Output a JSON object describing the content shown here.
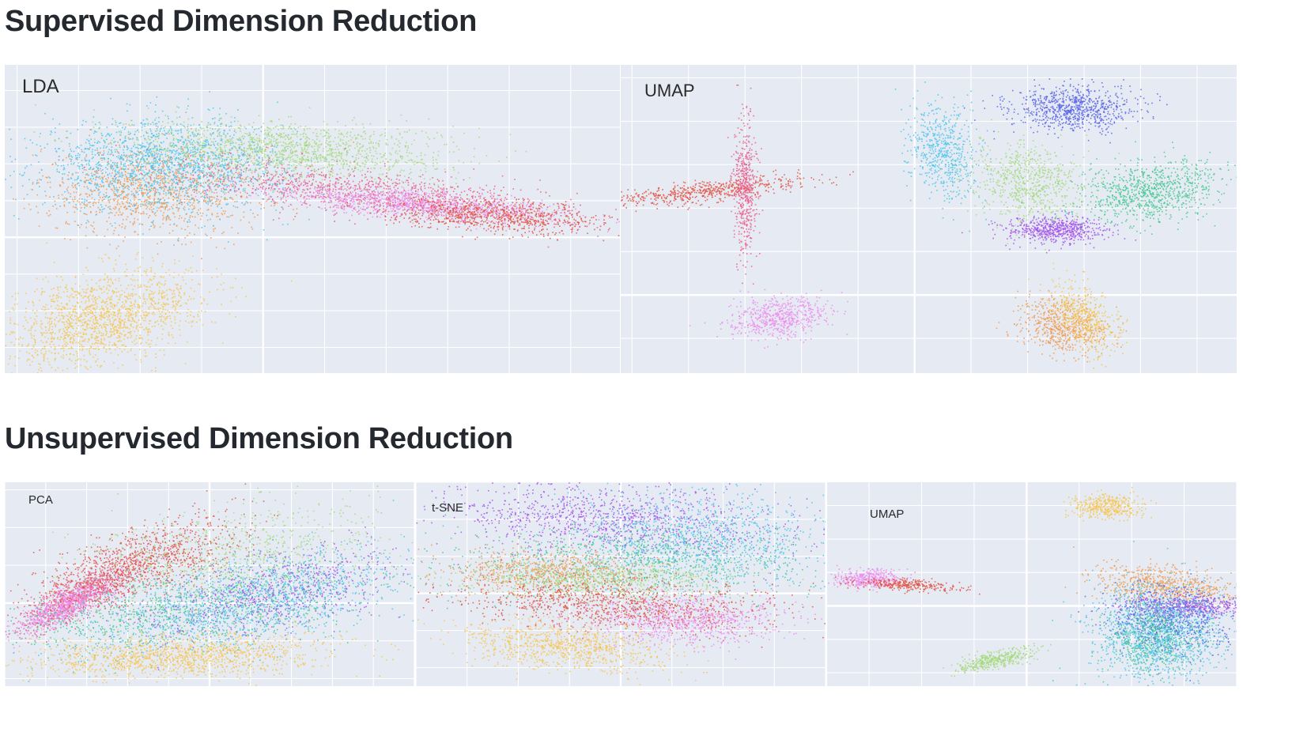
{
  "sections": {
    "supervised_title": "Supervised Dimension Reduction",
    "unsupervised_title": "Unsupervised Dimension Reduction"
  },
  "palette": {
    "red": "#e45444",
    "pink": "#ea5f8d",
    "violet": "#ef8ded",
    "blue": "#5b64e8",
    "cyan": "#4cc6eb",
    "green": "#45c98f",
    "lime": "#a6d97a",
    "purple": "#a653ec",
    "orange": "#f09a50",
    "yellow": "#f7c552"
  },
  "chart_data": [
    {
      "id": "lda",
      "label": "LDA",
      "type": "scatter",
      "clusters": [
        {
          "color": "yellow",
          "cx": -2.6,
          "cy": -2.2,
          "sx": 0.55,
          "sy": 0.9,
          "rot": -55,
          "n": 1600
        },
        {
          "color": "orange",
          "cx": -1.8,
          "cy": 1.3,
          "sx": 0.9,
          "sy": 0.6,
          "rot": 0,
          "n": 1200
        },
        {
          "color": "cyan",
          "cx": -1.6,
          "cy": 2.0,
          "sx": 1.0,
          "sy": 0.6,
          "rot": 0,
          "n": 1800
        },
        {
          "color": "lime",
          "cx": 0.4,
          "cy": 2.4,
          "sx": 1.3,
          "sy": 0.4,
          "rot": -5,
          "n": 1400
        },
        {
          "color": "pink",
          "cx": 1.8,
          "cy": 1.2,
          "sx": 1.6,
          "sy": 0.3,
          "rot": -10,
          "n": 1200
        },
        {
          "color": "violet",
          "cx": 2.6,
          "cy": 0.9,
          "sx": 1.2,
          "sy": 0.18,
          "rot": -8,
          "n": 1000
        },
        {
          "color": "red",
          "cx": 3.8,
          "cy": 0.6,
          "sx": 0.9,
          "sy": 0.22,
          "rot": -6,
          "n": 800
        }
      ],
      "xlim": [
        -4.2,
        5.8
      ],
      "ylim": [
        -3.7,
        4.7
      ]
    },
    {
      "id": "umap_supervised",
      "label": "UMAP",
      "type": "scatter",
      "clusters": [
        {
          "color": "red",
          "cx": -3.7,
          "cy": 2.4,
          "sx": 0.9,
          "sy": 0.12,
          "rot": 8,
          "n": 600
        },
        {
          "color": "pink",
          "cx": -3.0,
          "cy": 2.5,
          "sx": 0.1,
          "sy": 0.8,
          "rot": 0,
          "n": 500
        },
        {
          "color": "cyan",
          "cx": 0.5,
          "cy": 3.3,
          "sx": 0.3,
          "sy": 0.55,
          "rot": 10,
          "n": 600
        },
        {
          "color": "blue",
          "cx": 2.8,
          "cy": 4.3,
          "sx": 0.55,
          "sy": 0.25,
          "rot": 0,
          "n": 800
        },
        {
          "color": "lime",
          "cx": 2.0,
          "cy": 2.6,
          "sx": 0.5,
          "sy": 0.45,
          "rot": -30,
          "n": 700
        },
        {
          "color": "purple",
          "cx": 2.5,
          "cy": 1.5,
          "sx": 0.45,
          "sy": 0.15,
          "rot": 0,
          "n": 600
        },
        {
          "color": "green",
          "cx": 4.2,
          "cy": 2.4,
          "sx": 0.65,
          "sy": 0.35,
          "rot": 15,
          "n": 900
        },
        {
          "color": "violet",
          "cx": -2.4,
          "cy": -0.5,
          "sx": 0.45,
          "sy": 0.22,
          "rot": 10,
          "n": 600
        },
        {
          "color": "orange",
          "cx": 2.6,
          "cy": -0.7,
          "sx": 0.4,
          "sy": 0.3,
          "rot": -20,
          "n": 600
        },
        {
          "color": "yellow",
          "cx": 3.0,
          "cy": -0.5,
          "sx": 0.25,
          "sy": 0.45,
          "rot": 30,
          "n": 500
        }
      ],
      "xlim": [
        -5.2,
        5.7
      ],
      "ylim": [
        -1.8,
        5.3
      ]
    },
    {
      "id": "pca",
      "label": "PCA",
      "type": "scatter",
      "clusters": [
        {
          "color": "pink",
          "cx": -3.2,
          "cy": 0.2,
          "sx": 0.9,
          "sy": 0.22,
          "rot": 30,
          "n": 900
        },
        {
          "color": "violet",
          "cx": -3.6,
          "cy": -0.1,
          "sx": 0.6,
          "sy": 0.2,
          "rot": 30,
          "n": 700
        },
        {
          "color": "red",
          "cx": -1.8,
          "cy": 1.0,
          "sx": 1.3,
          "sy": 0.45,
          "rot": 20,
          "n": 1100
        },
        {
          "color": "lime",
          "cx": 0.5,
          "cy": 1.2,
          "sx": 1.8,
          "sy": 0.7,
          "rot": 8,
          "n": 800
        },
        {
          "color": "green",
          "cx": -0.5,
          "cy": -0.2,
          "sx": 2.2,
          "sy": 0.5,
          "rot": 8,
          "n": 1000
        },
        {
          "color": "cyan",
          "cx": 1.0,
          "cy": 0.1,
          "sx": 2.0,
          "sy": 0.55,
          "rot": 12,
          "n": 1400
        },
        {
          "color": "purple",
          "cx": 1.5,
          "cy": 0.3,
          "sx": 1.6,
          "sy": 0.5,
          "rot": 14,
          "n": 700
        },
        {
          "color": "yellow",
          "cx": -0.8,
          "cy": -1.4,
          "sx": 1.8,
          "sy": 0.28,
          "rot": 2,
          "n": 1300
        }
      ],
      "xlim": [
        -5,
        5
      ],
      "ylim": [
        -2.2,
        3.2
      ]
    },
    {
      "id": "tsne",
      "label": "t-SNE",
      "type": "scatter",
      "clusters": [
        {
          "color": "purple",
          "cx": -0.2,
          "cy": 2.0,
          "sx": 1.6,
          "sy": 0.5,
          "rot": -5,
          "n": 1100
        },
        {
          "color": "cyan",
          "cx": 1.6,
          "cy": 1.4,
          "sx": 1.3,
          "sy": 0.65,
          "rot": 0,
          "n": 1100
        },
        {
          "color": "green",
          "cx": 0.2,
          "cy": 0.9,
          "sx": 1.8,
          "sy": 0.5,
          "rot": 0,
          "n": 800
        },
        {
          "color": "orange",
          "cx": -1.5,
          "cy": 0.6,
          "sx": 1.0,
          "sy": 0.3,
          "rot": 0,
          "n": 700
        },
        {
          "color": "lime",
          "cx": -0.4,
          "cy": 0.4,
          "sx": 1.4,
          "sy": 0.25,
          "rot": 0,
          "n": 700
        },
        {
          "color": "red",
          "cx": -0.1,
          "cy": -0.3,
          "sx": 1.6,
          "sy": 0.35,
          "rot": -5,
          "n": 1100
        },
        {
          "color": "violet",
          "cx": 1.3,
          "cy": -0.7,
          "sx": 0.9,
          "sy": 0.35,
          "rot": 0,
          "n": 800
        },
        {
          "color": "yellow",
          "cx": -1.1,
          "cy": -1.4,
          "sx": 1.0,
          "sy": 0.3,
          "rot": -8,
          "n": 900
        }
      ],
      "xlim": [
        -4,
        4
      ],
      "ylim": [
        -2.5,
        3.0
      ]
    },
    {
      "id": "umap_unsupervised",
      "label": "UMAP",
      "type": "scatter",
      "clusters": [
        {
          "color": "yellow",
          "cx": 1.5,
          "cy": 3.0,
          "sx": 0.35,
          "sy": 0.18,
          "rot": 0,
          "n": 400
        },
        {
          "color": "violet",
          "cx": -3.0,
          "cy": 0.85,
          "sx": 0.3,
          "sy": 0.14,
          "rot": 0,
          "n": 400
        },
        {
          "color": "red",
          "cx": -2.3,
          "cy": 0.65,
          "sx": 0.5,
          "sy": 0.08,
          "rot": -5,
          "n": 300
        },
        {
          "color": "lime",
          "cx": -0.6,
          "cy": -1.6,
          "sx": 0.4,
          "sy": 0.12,
          "rot": 20,
          "n": 400
        },
        {
          "color": "orange",
          "cx": 2.6,
          "cy": 0.6,
          "sx": 0.7,
          "sy": 0.3,
          "rot": -10,
          "n": 700
        },
        {
          "color": "purple",
          "cx": 3.1,
          "cy": 0.0,
          "sx": 0.6,
          "sy": 0.15,
          "rot": 0,
          "n": 500
        },
        {
          "color": "cyan",
          "cx": 2.5,
          "cy": -0.8,
          "sx": 0.6,
          "sy": 0.7,
          "rot": 0,
          "n": 1400
        },
        {
          "color": "blue",
          "cx": 2.7,
          "cy": -0.4,
          "sx": 0.6,
          "sy": 0.55,
          "rot": 0,
          "n": 600
        },
        {
          "color": "green",
          "cx": 2.4,
          "cy": -1.0,
          "sx": 0.5,
          "sy": 0.5,
          "rot": 0,
          "n": 500
        }
      ],
      "xlim": [
        -3.8,
        4.0
      ],
      "ylim": [
        -2.4,
        3.7
      ]
    }
  ]
}
